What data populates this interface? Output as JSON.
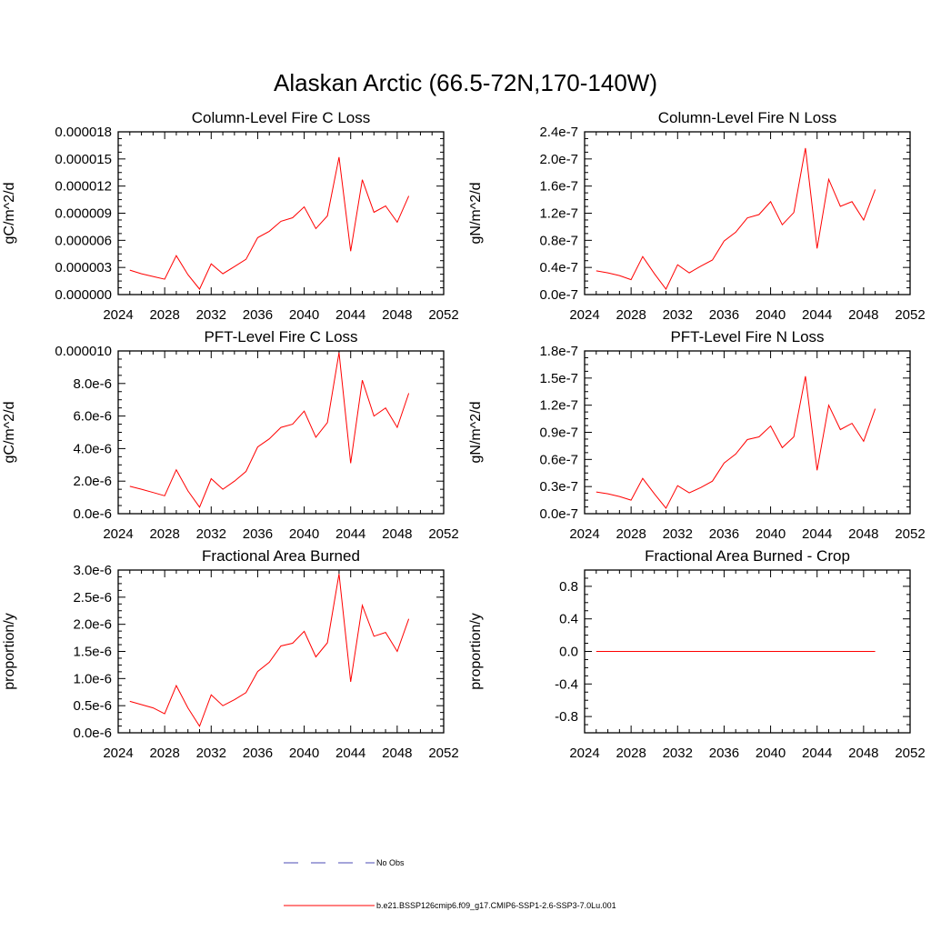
{
  "figure": {
    "title": "Alaskan Arctic (66.5-72N,170-140W)"
  },
  "colors": {
    "model": "#ff0000",
    "obs": "#4b4bb4",
    "axis": "#000000"
  },
  "legend": {
    "obs_label": "No Obs",
    "model_label": "b.e21.BSSP126cmip6.f09_g17.CMIP6-SSP1-2.6-SSP3-7.0Lu.001"
  },
  "chart_data": [
    {
      "type": "line",
      "title": "Column-Level Fire C Loss",
      "ylabel": "gC/m^2/d",
      "xlim": [
        2024,
        2052
      ],
      "xticks": [
        2024,
        2028,
        2032,
        2036,
        2040,
        2044,
        2048,
        2052
      ],
      "ylim": [
        0,
        1.8e-05
      ],
      "yticks": [
        0,
        3e-06,
        6e-06,
        9e-06,
        1.2e-05,
        1.5e-05,
        1.8e-05
      ],
      "ytick_labels": [
        "0.000000",
        "0.000003",
        "0.000006",
        "0.000009",
        "0.000012",
        "0.000015",
        "0.000018"
      ],
      "series": [
        {
          "x": [
            2025,
            2026,
            2027,
            2028,
            2029,
            2030,
            2031,
            2032,
            2033,
            2034,
            2035,
            2036,
            2037,
            2038,
            2039,
            2040,
            2041,
            2042,
            2043,
            2044,
            2045,
            2046,
            2047,
            2048,
            2049
          ],
          "y": [
            2.7e-06,
            2.3e-06,
            2e-06,
            1.7e-06,
            4.3e-06,
            2.2e-06,
            6e-07,
            3.4e-06,
            2.3e-06,
            3.1e-06,
            3.9e-06,
            6.3e-06,
            7e-06,
            8.1e-06,
            8.5e-06,
            9.7e-06,
            7.3e-06,
            8.7e-06,
            1.52e-05,
            4.8e-06,
            1.27e-05,
            9.1e-06,
            9.8e-06,
            8e-06,
            1.09e-05
          ]
        }
      ]
    },
    {
      "type": "line",
      "title": "Column-Level Fire N Loss",
      "ylabel": "gN/m^2/d",
      "xlim": [
        2024,
        2052
      ],
      "xticks": [
        2024,
        2028,
        2032,
        2036,
        2040,
        2044,
        2048,
        2052
      ],
      "ylim": [
        0,
        2.4e-07
      ],
      "yticks": [
        0,
        4e-08,
        8e-08,
        1.2e-07,
        1.6e-07,
        2e-07,
        2.4e-07
      ],
      "ytick_labels": [
        "0.0e-7",
        "0.4e-7",
        "0.8e-7",
        "1.2e-7",
        "1.6e-7",
        "2.0e-7",
        "2.4e-7"
      ],
      "series": [
        {
          "x": [
            2025,
            2026,
            2027,
            2028,
            2029,
            2030,
            2031,
            2032,
            2033,
            2034,
            2035,
            2036,
            2037,
            2038,
            2039,
            2040,
            2041,
            2042,
            2043,
            2044,
            2045,
            2046,
            2047,
            2048,
            2049
          ],
          "y": [
            3.5e-08,
            3.2e-08,
            2.8e-08,
            2.2e-08,
            5.6e-08,
            3.1e-08,
            8e-09,
            4.4e-08,
            3.2e-08,
            4.2e-08,
            5.1e-08,
            7.9e-08,
            9.2e-08,
            1.13e-07,
            1.18e-07,
            1.37e-07,
            1.03e-07,
            1.21e-07,
            2.16e-07,
            6.8e-08,
            1.7e-07,
            1.3e-07,
            1.37e-07,
            1.1e-07,
            1.55e-07
          ]
        }
      ]
    },
    {
      "type": "line",
      "title": "PFT-Level Fire C Loss",
      "ylabel": "gC/m^2/d",
      "xlim": [
        2024,
        2052
      ],
      "xticks": [
        2024,
        2028,
        2032,
        2036,
        2040,
        2044,
        2048,
        2052
      ],
      "ylim": [
        0,
        1e-05
      ],
      "yticks": [
        0,
        2e-06,
        4e-06,
        6e-06,
        8e-06,
        1e-05
      ],
      "ytick_labels": [
        "0.0e-6",
        "2.0e-6",
        "4.0e-6",
        "6.0e-6",
        "8.0e-6",
        "0.000010"
      ],
      "series": [
        {
          "x": [
            2025,
            2026,
            2027,
            2028,
            2029,
            2030,
            2031,
            2032,
            2033,
            2034,
            2035,
            2036,
            2037,
            2038,
            2039,
            2040,
            2041,
            2042,
            2043,
            2044,
            2045,
            2046,
            2047,
            2048,
            2049
          ],
          "y": [
            1.68e-06,
            1.5e-06,
            1.3e-06,
            1.1e-06,
            2.7e-06,
            1.4e-06,
            4e-07,
            2.15e-06,
            1.5e-06,
            2e-06,
            2.6e-06,
            4.1e-06,
            4.6e-06,
            5.3e-06,
            5.5e-06,
            6.3e-06,
            4.7e-06,
            5.6e-06,
            9.9e-06,
            3.1e-06,
            8.2e-06,
            6e-06,
            6.5e-06,
            5.3e-06,
            7.4e-06
          ]
        }
      ]
    },
    {
      "type": "line",
      "title": "PFT-Level Fire N Loss",
      "ylabel": "gN/m^2/d",
      "xlim": [
        2024,
        2052
      ],
      "xticks": [
        2024,
        2028,
        2032,
        2036,
        2040,
        2044,
        2048,
        2052
      ],
      "ylim": [
        0,
        1.8e-07
      ],
      "yticks": [
        0,
        3e-08,
        6e-08,
        9e-08,
        1.2e-07,
        1.5e-07,
        1.8e-07
      ],
      "ytick_labels": [
        "0.0e-7",
        "0.3e-7",
        "0.6e-7",
        "0.9e-7",
        "1.2e-7",
        "1.5e-7",
        "1.8e-7"
      ],
      "series": [
        {
          "x": [
            2025,
            2026,
            2027,
            2028,
            2029,
            2030,
            2031,
            2032,
            2033,
            2034,
            2035,
            2036,
            2037,
            2038,
            2039,
            2040,
            2041,
            2042,
            2043,
            2044,
            2045,
            2046,
            2047,
            2048,
            2049
          ],
          "y": [
            2.4e-08,
            2.2e-08,
            1.9e-08,
            1.5e-08,
            3.9e-08,
            2.2e-08,
            6e-09,
            3.1e-08,
            2.3e-08,
            2.9e-08,
            3.6e-08,
            5.6e-08,
            6.6e-08,
            8.2e-08,
            8.5e-08,
            9.7e-08,
            7.3e-08,
            8.5e-08,
            1.52e-07,
            4.8e-08,
            1.2e-07,
            9.3e-08,
            1e-07,
            8e-08,
            1.16e-07
          ]
        }
      ]
    },
    {
      "type": "line",
      "title": "Fractional Area Burned",
      "ylabel": "proportion/y",
      "xlim": [
        2024,
        2052
      ],
      "xticks": [
        2024,
        2028,
        2032,
        2036,
        2040,
        2044,
        2048,
        2052
      ],
      "ylim": [
        0,
        3e-06
      ],
      "yticks": [
        0,
        5e-07,
        1e-06,
        1.5e-06,
        2e-06,
        2.5e-06,
        3e-06
      ],
      "ytick_labels": [
        "0.0e-6",
        "0.5e-6",
        "1.0e-6",
        "1.5e-6",
        "2.0e-6",
        "2.5e-6",
        "3.0e-6"
      ],
      "series": [
        {
          "x": [
            2025,
            2026,
            2027,
            2028,
            2029,
            2030,
            2031,
            2032,
            2033,
            2034,
            2035,
            2036,
            2037,
            2038,
            2039,
            2040,
            2041,
            2042,
            2043,
            2044,
            2045,
            2046,
            2047,
            2048,
            2049
          ],
          "y": [
            5.8e-07,
            5.2e-07,
            4.6e-07,
            3.5e-07,
            8.7e-07,
            4.6e-07,
            1.2e-07,
            7e-07,
            5e-07,
            6.1e-07,
            7.4e-07,
            1.13e-06,
            1.3e-06,
            1.6e-06,
            1.65e-06,
            1.87e-06,
            1.4e-06,
            1.66e-06,
            2.93e-06,
            9.4e-07,
            2.35e-06,
            1.78e-06,
            1.85e-06,
            1.5e-06,
            2.1e-06
          ]
        }
      ]
    },
    {
      "type": "line",
      "title": "Fractional Area Burned - Crop",
      "ylabel": "proportion/y",
      "xlim": [
        2024,
        2052
      ],
      "xticks": [
        2024,
        2028,
        2032,
        2036,
        2040,
        2044,
        2048,
        2052
      ],
      "ylim": [
        -1,
        1
      ],
      "yticks": [
        -0.8,
        -0.4,
        0,
        0.4,
        0.8
      ],
      "ytick_labels": [
        "-0.8",
        "-0.4",
        "0.0",
        "0.4",
        "0.8"
      ],
      "series": [
        {
          "x": [
            2025,
            2026,
            2027,
            2028,
            2029,
            2030,
            2031,
            2032,
            2033,
            2034,
            2035,
            2036,
            2037,
            2038,
            2039,
            2040,
            2041,
            2042,
            2043,
            2044,
            2045,
            2046,
            2047,
            2048,
            2049
          ],
          "y": [
            0,
            0,
            0,
            0,
            0,
            0,
            0,
            0,
            0,
            0,
            0,
            0,
            0,
            0,
            0,
            0,
            0,
            0,
            0,
            0,
            0,
            0,
            0,
            0,
            0
          ]
        }
      ]
    }
  ]
}
